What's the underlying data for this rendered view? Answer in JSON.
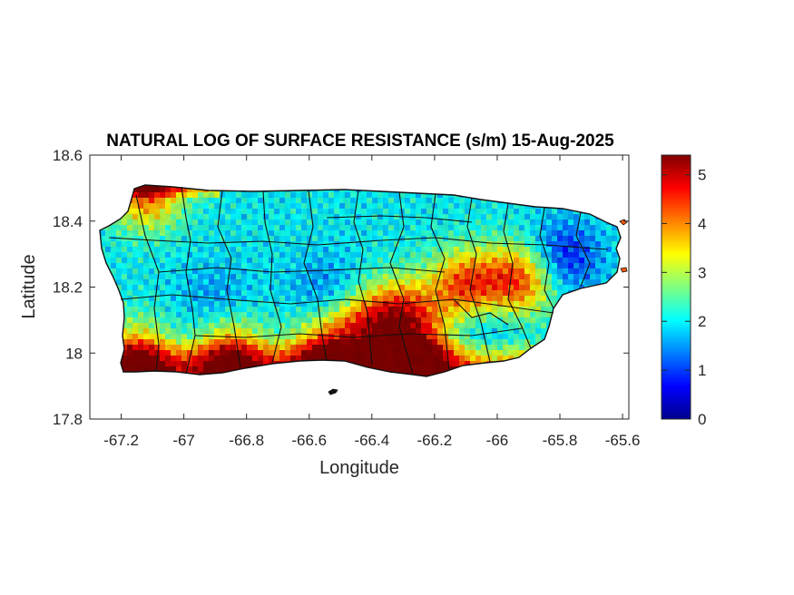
{
  "chart_data": {
    "type": "heatmap",
    "title": "NATURAL LOG OF SURFACE RESISTANCE (s/m) 15-Aug-2025",
    "xlabel": "Longitude",
    "ylabel": "Latitude",
    "xlim": [
      -67.3,
      -65.58
    ],
    "ylim": [
      17.8,
      18.6
    ],
    "x_ticks": [
      -67.2,
      -67,
      -66.8,
      -66.6,
      -66.4,
      -66.2,
      -66,
      -65.8,
      -65.6
    ],
    "x_tick_labels": [
      "-67.2",
      "-67",
      "-66.8",
      "-66.6",
      "-66.4",
      "-66.2",
      "-66",
      "-65.8",
      "-65.6"
    ],
    "y_ticks": [
      17.8,
      18,
      18.2,
      18.4,
      18.6
    ],
    "y_tick_labels": [
      "17.8",
      "18",
      "18.2",
      "18.4",
      "18.6"
    ],
    "colorbar": {
      "range": [
        0,
        5.4
      ],
      "ticks": [
        0,
        1,
        2,
        3,
        4,
        5
      ],
      "tick_labels": [
        "0",
        "1",
        "2",
        "3",
        "4",
        "5"
      ],
      "colormap": "jet"
    },
    "field_hotspots": [
      {
        "lon": -66.25,
        "lat": 17.98,
        "value": 5.3
      },
      {
        "lon": -66.55,
        "lat": 17.99,
        "value": 5.0
      },
      {
        "lon": -66.85,
        "lat": 17.99,
        "value": 4.8
      },
      {
        "lon": -67.15,
        "lat": 17.98,
        "value": 4.9
      },
      {
        "lon": -67.12,
        "lat": 18.49,
        "value": 4.7
      },
      {
        "lon": -66.1,
        "lat": 18.2,
        "value": 4.9
      },
      {
        "lon": -65.93,
        "lat": 18.22,
        "value": 4.8
      },
      {
        "lon": -66.3,
        "lat": 18.12,
        "value": 4.6
      },
      {
        "lon": -66.42,
        "lat": 18.07,
        "value": 4.5
      },
      {
        "lon": -65.79,
        "lat": 18.29,
        "value": 0.5
      },
      {
        "lon": -66.55,
        "lat": 18.19,
        "value": 1.3
      },
      {
        "lon": -66.9,
        "lat": 18.16,
        "value": 1.4
      },
      {
        "lon": -66.05,
        "lat": 18.1,
        "value": 1.2
      }
    ],
    "field_base_value": 2.0
  }
}
